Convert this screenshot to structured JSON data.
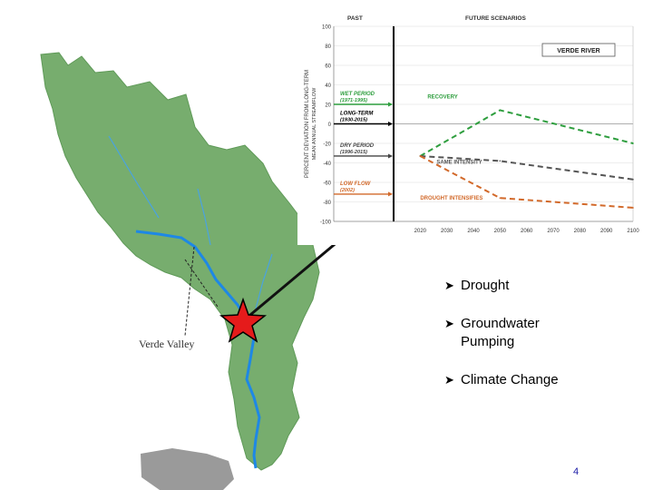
{
  "map": {
    "valley_label": "Verde Valley"
  },
  "bullets": [
    {
      "label": "Drought"
    },
    {
      "label": "Groundwater Pumping"
    },
    {
      "label": "Climate Change"
    }
  ],
  "page_number": "4",
  "colors": {
    "watershed_green": "#77ad6e",
    "river_blue": "#1e88e5",
    "star_red": "#e51b1b",
    "wet_green": "#2e9e3e",
    "dry_gray": "#444444",
    "low_orange": "#d2692a"
  },
  "chart_data": {
    "type": "line",
    "header_left": "PAST",
    "header_right": "FUTURE SCENARIOS",
    "legend_title": "VERDE RIVER",
    "ylabel_line1": "PERCENT DEVIATION FROM LONG-TERM",
    "ylabel_line2": "MEAN ANNUAL STREAMFLOW",
    "ylim": [
      -100,
      100
    ],
    "yticks": [
      100,
      80,
      60,
      40,
      20,
      0,
      -20,
      -40,
      -60,
      -80,
      -100
    ],
    "xlim": [
      2010,
      2100
    ],
    "xticks": [
      2020,
      2030,
      2040,
      2050,
      2060,
      2070,
      2080,
      2090,
      2100
    ],
    "past_periods": [
      {
        "label": "WET PERIOD",
        "sublabel": "(1971-1995)",
        "value": 20,
        "color": "#2e9e3e"
      },
      {
        "label": "LONG-TERM",
        "sublabel": "(1930-2015)",
        "value": 0,
        "color": "#000000"
      },
      {
        "label": "DRY PERIOD",
        "sublabel": "(1996-2015)",
        "value": -33,
        "color": "#444444"
      },
      {
        "label": "LOW FLOW",
        "sublabel": "(2002)",
        "value": -72,
        "color": "#d2692a"
      }
    ],
    "series": [
      {
        "name": "RECOVERY",
        "color": "#2e9e3e",
        "x": [
          2020,
          2050,
          2100
        ],
        "y": [
          -33,
          14,
          -20
        ]
      },
      {
        "name": "SAME INTENSITY",
        "color": "#555555",
        "x": [
          2020,
          2050,
          2100
        ],
        "y": [
          -33,
          -38,
          -57
        ]
      },
      {
        "name": "DROUGHT INTENSIFIES",
        "color": "#d2692a",
        "x": [
          2020,
          2050,
          2100
        ],
        "y": [
          -33,
          -76,
          -86
        ]
      }
    ]
  }
}
